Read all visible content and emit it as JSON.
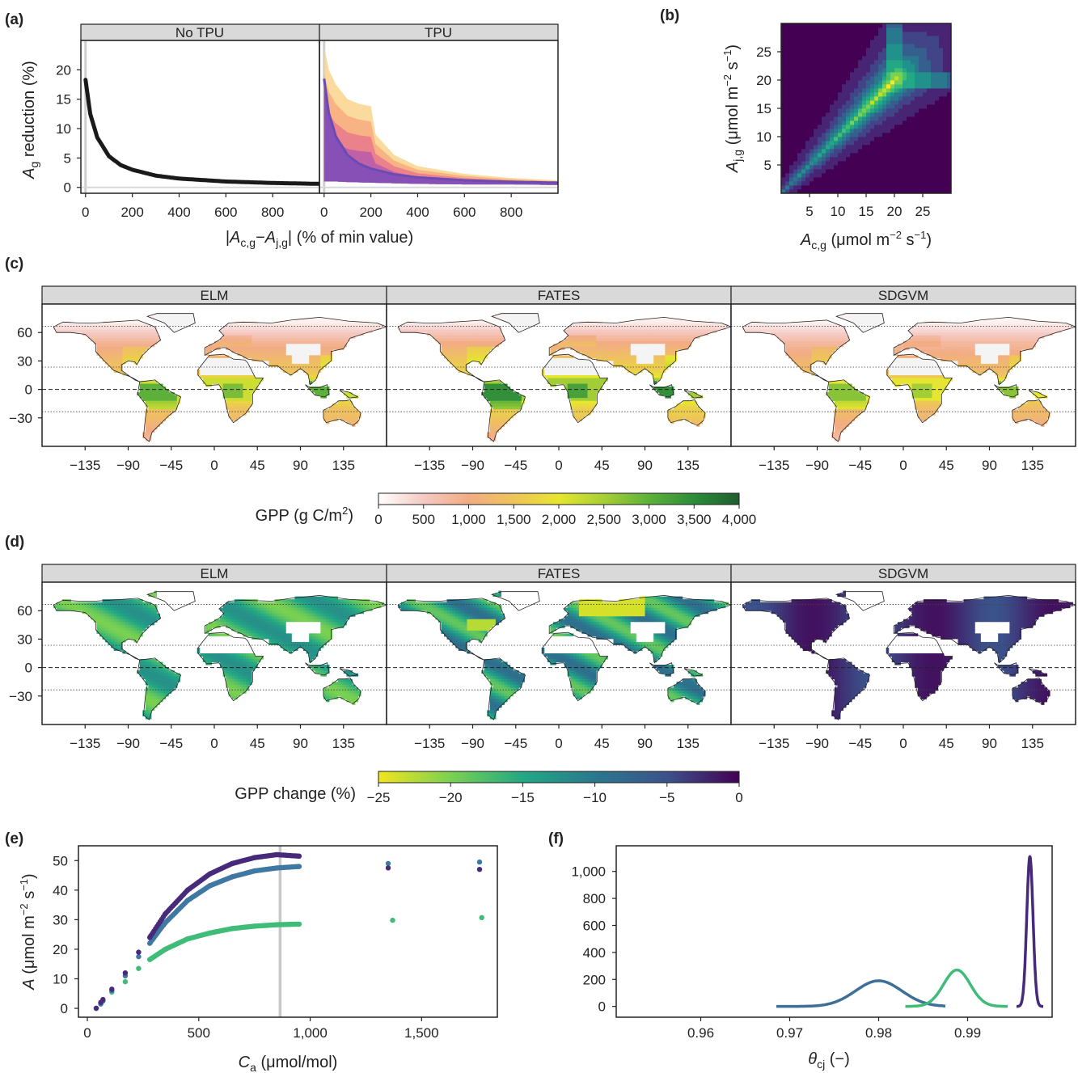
{
  "chart_data": [
    {
      "panel": "(a)",
      "type": "area",
      "facets": [
        "No TPU",
        "TPU"
      ],
      "ylabel": "A_g reduction (%)",
      "xlabel": "|A_c,g − A_j,g| (% of min value)",
      "xticks": [
        0,
        200,
        400,
        600,
        800
      ],
      "yticks": [
        0,
        5,
        10,
        15,
        20
      ],
      "xlim": [
        -20,
        1000
      ],
      "ylim": [
        -1,
        25
      ],
      "no_tpu_curve": {
        "x": [
          0,
          20,
          50,
          100,
          150,
          200,
          300,
          400,
          600,
          800,
          1000
        ],
        "y": [
          18.3,
          12.5,
          8.5,
          5.3,
          3.8,
          3.0,
          2.0,
          1.5,
          1.0,
          0.75,
          0.6
        ]
      },
      "tpu_upper": {
        "x": [
          0,
          20,
          50,
          100,
          150,
          200,
          220,
          300,
          400,
          600,
          800,
          1000
        ],
        "y": [
          24.0,
          20.0,
          17.5,
          15.0,
          14.2,
          13.8,
          9.0,
          5.5,
          3.6,
          2.3,
          1.6,
          1.2
        ]
      },
      "tpu_lower": {
        "x": [
          0,
          50,
          100,
          200,
          300,
          400,
          600,
          800,
          1000
        ],
        "y": [
          1.0,
          1.0,
          0.9,
          0.8,
          0.7,
          0.6,
          0.5,
          0.5,
          0.4
        ]
      },
      "tpu_colors": [
        "#f9d58c",
        "#f6ab80",
        "#e9788b",
        "#b85cab",
        "#7b4db8"
      ]
    },
    {
      "panel": "(b)",
      "type": "heatmap",
      "xlabel": "A_c,g (μmol m−2 s−1)",
      "ylabel": "A_j,g (μmol m−2 s−1)",
      "xticks": [
        5,
        10,
        15,
        20,
        25
      ],
      "yticks": [
        5,
        10,
        15,
        20,
        25
      ],
      "xlim": [
        0,
        30
      ],
      "ylim": [
        0,
        30
      ],
      "peak": [
        20,
        20
      ],
      "colormap": "viridis"
    },
    {
      "panel": "(c)",
      "type": "heatmap",
      "facets": [
        "ELM",
        "FATES",
        "SDGVM"
      ],
      "yticks": [
        60,
        30,
        0,
        -30
      ],
      "xticks": [
        -135,
        -90,
        -45,
        0,
        45,
        90,
        135
      ],
      "colorbar_label": "GPP (g C/m2)",
      "colorbar_ticks": [
        "0",
        "500",
        "1,000",
        "1,500",
        "2,000",
        "2,500",
        "3,000",
        "3,500",
        "4,000"
      ],
      "colorbar_colors": [
        "#ffffff",
        "#f5c9c2",
        "#f2ac84",
        "#eec45a",
        "#e6e62f",
        "#a7cf36",
        "#5db13a",
        "#2d8c3a",
        "#1e5e2e"
      ]
    },
    {
      "panel": "(d)",
      "type": "heatmap",
      "facets": [
        "ELM",
        "FATES",
        "SDGVM"
      ],
      "yticks": [
        60,
        30,
        0,
        -30
      ],
      "xticks": [
        -135,
        -90,
        -45,
        0,
        45,
        90,
        135
      ],
      "colorbar_label": "GPP change (%)",
      "colorbar_ticks": [
        "-25",
        "-20",
        "-15",
        "-10",
        "-5",
        "0"
      ],
      "colorbar_colors": [
        "#f2e51d",
        "#7ad151",
        "#22a884",
        "#2a788e",
        "#3b528b",
        "#440154"
      ]
    },
    {
      "panel": "(e)",
      "type": "scatter",
      "xlabel": "C_a (μmol/mol)",
      "ylabel": "A (μmol m−2 s−1)",
      "xticks": [
        0,
        500,
        1000,
        1500
      ],
      "xtick_labels": [
        "0",
        "500",
        "1,000",
        "1,500"
      ],
      "yticks": [
        0,
        10,
        20,
        30,
        40,
        50
      ],
      "xlim": [
        -40,
        1840
      ],
      "ylim": [
        -3,
        55
      ],
      "vline_x": 865,
      "series": [
        {
          "color": "#472a7a",
          "x": [
            40,
            60,
            70,
            110,
            170,
            230,
            280,
            350,
            450,
            550,
            650,
            750,
            850,
            950,
            1350,
            1760
          ],
          "y": [
            0,
            2,
            3,
            6.5,
            12,
            19,
            24,
            32,
            40,
            45.5,
            49,
            51,
            52,
            51.5,
            47.5,
            47
          ]
        },
        {
          "color": "#3e78a3",
          "x": [
            40,
            60,
            70,
            110,
            170,
            230,
            280,
            350,
            450,
            550,
            650,
            750,
            850,
            950,
            1350,
            1760
          ],
          "y": [
            0,
            1.5,
            2.5,
            6,
            11,
            17.5,
            22,
            29,
            36.5,
            41.5,
            44.5,
            46.5,
            47.5,
            48,
            49,
            49.5
          ]
        },
        {
          "color": "#3fbc78",
          "x": [
            40,
            60,
            70,
            110,
            170,
            230,
            280,
            350,
            450,
            550,
            650,
            750,
            850,
            950,
            1370,
            1770
          ],
          "y": [
            0,
            1.5,
            2.5,
            5.5,
            9,
            13.5,
            16.5,
            20,
            23.5,
            25.5,
            27,
            27.8,
            28.3,
            28.5,
            29.8,
            30.7
          ]
        }
      ]
    },
    {
      "panel": "(f)",
      "type": "line",
      "xlabel": "θ_cj (−)",
      "xticks": [
        0.96,
        0.97,
        0.98,
        0.99
      ],
      "yticks": [
        0,
        200,
        400,
        600,
        800,
        1000
      ],
      "ytick_labels": [
        "0",
        "200",
        "400",
        "600",
        "800",
        "1,000"
      ],
      "xlim": [
        0.9505,
        0.9995
      ],
      "ylim": [
        -80,
        1190
      ],
      "series": [
        {
          "color": "#3e6f99",
          "center": 0.98,
          "sd": 0.0026,
          "peak": 190,
          "range": [
            0.9685,
            0.9875
          ]
        },
        {
          "color": "#3fbc78",
          "center": 0.9888,
          "sd": 0.0015,
          "peak": 270,
          "range": [
            0.983,
            0.9945
          ]
        },
        {
          "color": "#472a7a",
          "center": 0.997,
          "sd": 0.00035,
          "peak": 1110,
          "range": [
            0.9955,
            0.9985
          ]
        }
      ]
    }
  ]
}
